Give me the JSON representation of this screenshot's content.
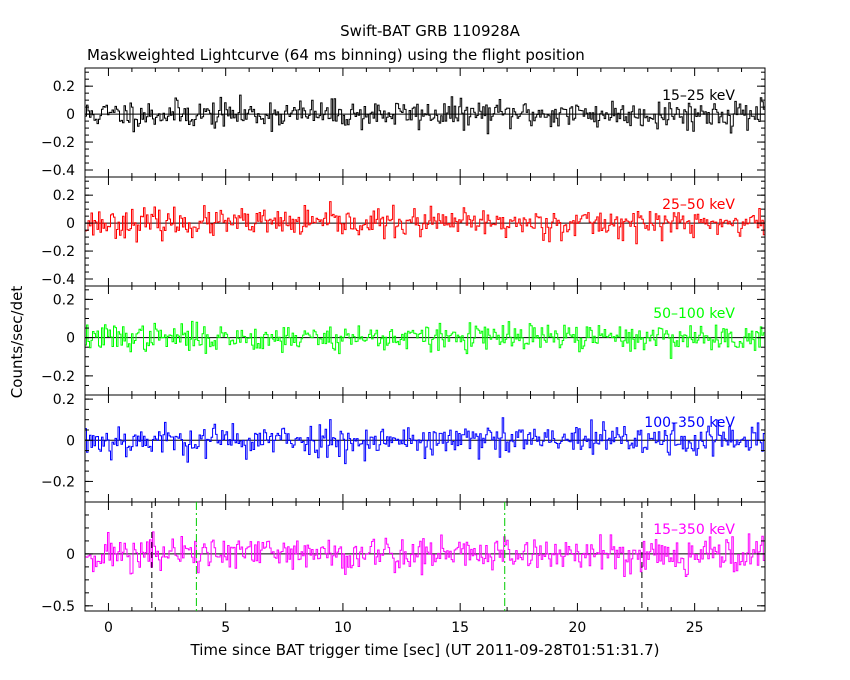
{
  "chart_data": {
    "type": "line",
    "title": "Swift-BAT GRB 110928A",
    "subtitle": "Maskweighted Lightcurve (64 ms binning) using the flight position",
    "xlabel": "Time since BAT trigger time [sec] (UT 2011-09-28T01:51:31.7)",
    "ylabel": "Counts/sec/det",
    "xlim": [
      -1.0,
      28.0
    ],
    "xticks": [
      0,
      5,
      10,
      15,
      20,
      25
    ],
    "bin_seconds": 0.064,
    "grid": false,
    "panels": [
      {
        "label": "15–25 keV",
        "color": "#000000",
        "ylim": [
          -0.45,
          0.33
        ],
        "yticks": [
          0.2,
          0,
          -0.2,
          -0.4
        ],
        "ytick_labels": [
          "0.2",
          "0",
          "−0.2",
          "−0.4"
        ],
        "noise_sigma": 0.05,
        "seed": 11
      },
      {
        "label": "25–50 keV",
        "color": "#ff0000",
        "ylim": [
          -0.45,
          0.33
        ],
        "yticks": [
          0.2,
          0,
          -0.2,
          -0.4
        ],
        "ytick_labels": [
          "0.2",
          "0",
          "−0.2",
          "−0.4"
        ],
        "noise_sigma": 0.05,
        "seed": 23
      },
      {
        "label": "50–100 keV",
        "color": "#00ff00",
        "ylim": [
          -0.3,
          0.27
        ],
        "yticks": [
          0.2,
          0,
          -0.2
        ],
        "ytick_labels": [
          "0.2",
          "0",
          "−0.2"
        ],
        "noise_sigma": 0.035,
        "seed": 37
      },
      {
        "label": "100–350 keV",
        "color": "#0000ff",
        "ylim": [
          -0.3,
          0.22
        ],
        "yticks": [
          0.2,
          0,
          -0.2
        ],
        "ytick_labels": [
          "0.2",
          "0",
          "−0.2"
        ],
        "noise_sigma": 0.04,
        "seed": 53
      },
      {
        "label": "15–350 keV",
        "color": "#ff00ff",
        "ylim": [
          -0.55,
          0.5
        ],
        "yticks": [
          0,
          -0.5
        ],
        "ytick_labels": [
          "0",
          "−0.5"
        ],
        "noise_sigma": 0.09,
        "seed": 71
      }
    ],
    "markers": [
      {
        "x": 1.85,
        "color": "#000000",
        "style": "dashed"
      },
      {
        "x": 3.75,
        "color": "#00cc00",
        "style": "dashdot"
      },
      {
        "x": 16.9,
        "color": "#00cc00",
        "style": "dashdot"
      },
      {
        "x": 22.75,
        "color": "#000000",
        "style": "dashed"
      }
    ]
  }
}
